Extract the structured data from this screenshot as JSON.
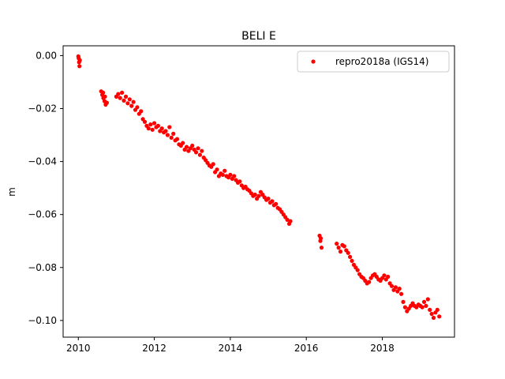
{
  "chart_data": {
    "type": "scatter",
    "title": "BELI E",
    "xlabel": "",
    "ylabel": "m",
    "xlim": [
      2009.6,
      2019.9
    ],
    "ylim": [
      -0.1063,
      0.0037
    ],
    "xticks": [
      2010,
      2012,
      2014,
      2016,
      2018
    ],
    "yticks": [
      0.0,
      -0.02,
      -0.04,
      -0.06,
      -0.08,
      -0.1
    ],
    "xtick_labels": [
      "2010",
      "2012",
      "2014",
      "2016",
      "2018"
    ],
    "ytick_labels": [
      "0.00",
      "−0.02",
      "−0.04",
      "−0.06",
      "−0.08",
      "−0.10"
    ],
    "grid": false,
    "legend_position": "top-right",
    "series": [
      {
        "name": "repro2018a (IGS14)",
        "color": "#ff0000",
        "marker": "circle",
        "points": [
          [
            2010.0,
            -0.0003
          ],
          [
            2010.01,
            -0.001
          ],
          [
            2010.02,
            -0.0025
          ],
          [
            2010.03,
            -0.004
          ],
          [
            2010.04,
            -0.0018
          ],
          [
            2010.6,
            -0.0135
          ],
          [
            2010.63,
            -0.0148
          ],
          [
            2010.66,
            -0.016
          ],
          [
            2010.69,
            -0.0172
          ],
          [
            2010.72,
            -0.0185
          ],
          [
            2010.65,
            -0.014
          ],
          [
            2010.7,
            -0.0155
          ],
          [
            2010.75,
            -0.0178
          ],
          [
            2011.0,
            -0.0155
          ],
          [
            2011.05,
            -0.0145
          ],
          [
            2011.1,
            -0.016
          ],
          [
            2011.15,
            -0.014
          ],
          [
            2011.2,
            -0.017
          ],
          [
            2011.25,
            -0.0155
          ],
          [
            2011.3,
            -0.018
          ],
          [
            2011.35,
            -0.0165
          ],
          [
            2011.4,
            -0.019
          ],
          [
            2011.45,
            -0.0175
          ],
          [
            2011.5,
            -0.0205
          ],
          [
            2011.55,
            -0.0195
          ],
          [
            2011.6,
            -0.022
          ],
          [
            2011.65,
            -0.021
          ],
          [
            2011.7,
            -0.024
          ],
          [
            2011.75,
            -0.025
          ],
          [
            2011.8,
            -0.0265
          ],
          [
            2011.85,
            -0.0275
          ],
          [
            2011.9,
            -0.026
          ],
          [
            2011.95,
            -0.028
          ],
          [
            2012.0,
            -0.0255
          ],
          [
            2012.05,
            -0.027
          ],
          [
            2012.1,
            -0.0265
          ],
          [
            2012.15,
            -0.0285
          ],
          [
            2012.2,
            -0.0275
          ],
          [
            2012.25,
            -0.029
          ],
          [
            2012.3,
            -0.0285
          ],
          [
            2012.35,
            -0.03
          ],
          [
            2012.4,
            -0.027
          ],
          [
            2012.45,
            -0.031
          ],
          [
            2012.5,
            -0.0295
          ],
          [
            2012.55,
            -0.032
          ],
          [
            2012.6,
            -0.0315
          ],
          [
            2012.65,
            -0.0335
          ],
          [
            2012.7,
            -0.034
          ],
          [
            2012.75,
            -0.033
          ],
          [
            2012.8,
            -0.0355
          ],
          [
            2012.85,
            -0.0345
          ],
          [
            2012.9,
            -0.036
          ],
          [
            2012.95,
            -0.035
          ],
          [
            2013.0,
            -0.034
          ],
          [
            2013.05,
            -0.0355
          ],
          [
            2013.1,
            -0.0365
          ],
          [
            2013.15,
            -0.035
          ],
          [
            2013.2,
            -0.0375
          ],
          [
            2013.25,
            -0.036
          ],
          [
            2013.3,
            -0.0385
          ],
          [
            2013.35,
            -0.0395
          ],
          [
            2013.4,
            -0.0405
          ],
          [
            2013.45,
            -0.0415
          ],
          [
            2013.5,
            -0.042
          ],
          [
            2013.55,
            -0.041
          ],
          [
            2013.6,
            -0.044
          ],
          [
            2013.65,
            -0.043
          ],
          [
            2013.7,
            -0.0455
          ],
          [
            2013.75,
            -0.0445
          ],
          [
            2013.8,
            -0.045
          ],
          [
            2013.85,
            -0.0435
          ],
          [
            2013.9,
            -0.0455
          ],
          [
            2013.95,
            -0.046
          ],
          [
            2014.0,
            -0.045
          ],
          [
            2014.05,
            -0.0465
          ],
          [
            2014.1,
            -0.0455
          ],
          [
            2014.15,
            -0.047
          ],
          [
            2014.2,
            -0.048
          ],
          [
            2014.25,
            -0.0475
          ],
          [
            2014.3,
            -0.049
          ],
          [
            2014.35,
            -0.05
          ],
          [
            2014.4,
            -0.0495
          ],
          [
            2014.45,
            -0.0505
          ],
          [
            2014.5,
            -0.051
          ],
          [
            2014.55,
            -0.052
          ],
          [
            2014.6,
            -0.053
          ],
          [
            2014.65,
            -0.0525
          ],
          [
            2014.7,
            -0.054
          ],
          [
            2014.75,
            -0.053
          ],
          [
            2014.8,
            -0.0515
          ],
          [
            2014.85,
            -0.0525
          ],
          [
            2014.9,
            -0.0535
          ],
          [
            2014.95,
            -0.0545
          ],
          [
            2015.0,
            -0.054
          ],
          [
            2015.05,
            -0.0555
          ],
          [
            2015.1,
            -0.055
          ],
          [
            2015.15,
            -0.0565
          ],
          [
            2015.2,
            -0.056
          ],
          [
            2015.25,
            -0.0575
          ],
          [
            2015.3,
            -0.058
          ],
          [
            2015.35,
            -0.059
          ],
          [
            2015.4,
            -0.06
          ],
          [
            2015.45,
            -0.061
          ],
          [
            2015.5,
            -0.062
          ],
          [
            2015.55,
            -0.0635
          ],
          [
            2015.58,
            -0.0625
          ],
          [
            2016.35,
            -0.068
          ],
          [
            2016.37,
            -0.07
          ],
          [
            2016.4,
            -0.0725
          ],
          [
            2016.38,
            -0.069
          ],
          [
            2016.8,
            -0.071
          ],
          [
            2016.85,
            -0.0725
          ],
          [
            2016.9,
            -0.074
          ],
          [
            2016.95,
            -0.0715
          ],
          [
            2017.0,
            -0.072
          ],
          [
            2017.05,
            -0.0735
          ],
          [
            2017.1,
            -0.0745
          ],
          [
            2017.15,
            -0.076
          ],
          [
            2017.2,
            -0.0775
          ],
          [
            2017.25,
            -0.079
          ],
          [
            2017.3,
            -0.08
          ],
          [
            2017.35,
            -0.081
          ],
          [
            2017.4,
            -0.0825
          ],
          [
            2017.45,
            -0.0835
          ],
          [
            2017.5,
            -0.084
          ],
          [
            2017.55,
            -0.085
          ],
          [
            2017.6,
            -0.086
          ],
          [
            2017.65,
            -0.0855
          ],
          [
            2017.7,
            -0.084
          ],
          [
            2017.75,
            -0.083
          ],
          [
            2017.8,
            -0.0825
          ],
          [
            2017.85,
            -0.0835
          ],
          [
            2017.9,
            -0.0845
          ],
          [
            2017.95,
            -0.085
          ],
          [
            2018.0,
            -0.084
          ],
          [
            2018.05,
            -0.083
          ],
          [
            2018.1,
            -0.0845
          ],
          [
            2018.15,
            -0.0835
          ],
          [
            2018.2,
            -0.086
          ],
          [
            2018.25,
            -0.087
          ],
          [
            2018.3,
            -0.0885
          ],
          [
            2018.35,
            -0.0875
          ],
          [
            2018.4,
            -0.089
          ],
          [
            2018.45,
            -0.088
          ],
          [
            2018.5,
            -0.09
          ],
          [
            2018.55,
            -0.093
          ],
          [
            2018.6,
            -0.095
          ],
          [
            2018.65,
            -0.0965
          ],
          [
            2018.7,
            -0.0955
          ],
          [
            2018.75,
            -0.0945
          ],
          [
            2018.8,
            -0.0935
          ],
          [
            2018.85,
            -0.0945
          ],
          [
            2018.9,
            -0.095
          ],
          [
            2018.95,
            -0.094
          ],
          [
            2019.0,
            -0.0945
          ],
          [
            2019.05,
            -0.095
          ],
          [
            2019.1,
            -0.093
          ],
          [
            2019.15,
            -0.0945
          ],
          [
            2019.2,
            -0.092
          ],
          [
            2019.25,
            -0.096
          ],
          [
            2019.3,
            -0.0975
          ],
          [
            2019.35,
            -0.099
          ],
          [
            2019.4,
            -0.097
          ],
          [
            2019.45,
            -0.096
          ],
          [
            2019.5,
            -0.0985
          ]
        ]
      }
    ]
  }
}
